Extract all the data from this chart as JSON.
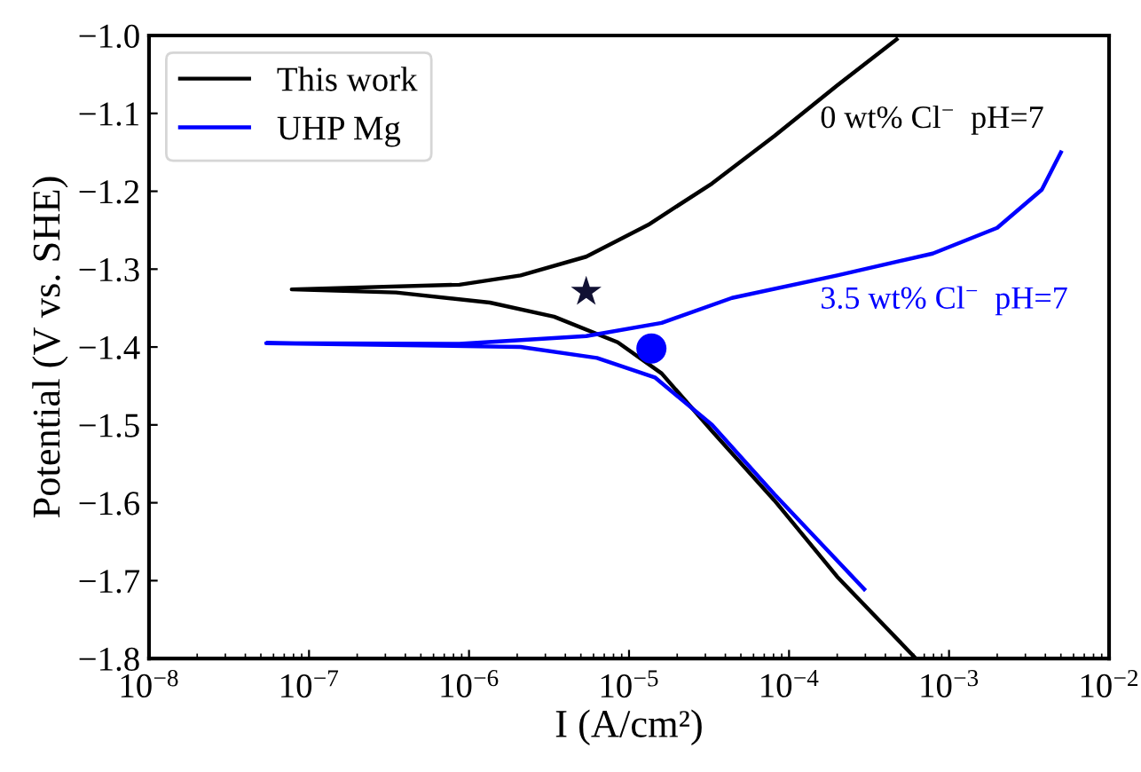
{
  "chart_data": {
    "type": "line",
    "xlabel": "I (A/cm²)",
    "ylabel": "Potential (V vs. SHE)",
    "log": "x",
    "xlim": [
      1e-08,
      0.01
    ],
    "ylim": [
      -1.8,
      -1.0
    ],
    "xticks": [
      {
        "value": 1e-08,
        "label": "10$^{−8}$"
      },
      {
        "value": 1e-07,
        "label": "10$^{−7}$"
      },
      {
        "value": 1e-06,
        "label": "10$^{−6}$"
      },
      {
        "value": 1e-05,
        "label": "10$^{−5}$"
      },
      {
        "value": 0.0001,
        "label": "10$^{−4}$"
      },
      {
        "value": 0.001,
        "label": "10$^{−3}$"
      },
      {
        "value": 0.01,
        "label": "10$^{−2}$"
      }
    ],
    "yticks": [
      {
        "value": -1.8,
        "label": "−1.8"
      },
      {
        "value": -1.7,
        "label": "−1.7"
      },
      {
        "value": -1.6,
        "label": "−1.6"
      },
      {
        "value": -1.5,
        "label": "−1.5"
      },
      {
        "value": -1.4,
        "label": "−1.4"
      },
      {
        "value": -1.3,
        "label": "−1.3"
      },
      {
        "value": -1.2,
        "label": "−1.2"
      },
      {
        "value": -1.1,
        "label": "−1.1"
      },
      {
        "value": -1.0,
        "label": "−1.0"
      }
    ],
    "grid": false,
    "legend": "top left",
    "line_style": "solid",
    "marker": "none",
    "series": [
      {
        "name": "This work",
        "color": "#000000",
        "x": [
          0.00062,
          0.0002,
          8.1e-05,
          3.3e-05,
          1.6e-05,
          8.5e-06,
          3.4e-06,
          1.35e-06,
          3.5e-07,
          7.8e-08,
          8.7e-07,
          2.1e-06,
          5.4e-06,
          1.32e-05,
          3.3e-05,
          8.1e-05,
          0.0002,
          0.00047
        ],
        "values": [
          -1.8,
          -1.695,
          -1.597,
          -1.508,
          -1.434,
          -1.394,
          -1.361,
          -1.343,
          -1.33,
          -1.326,
          -1.32,
          -1.308,
          -1.284,
          -1.243,
          -1.19,
          -1.129,
          -1.064,
          -1.005
        ]
      },
      {
        "name": "UHP Mg",
        "color": "#0000ff",
        "x": [
          0.000295,
          8.1e-05,
          3.3e-05,
          1.45e-05,
          6.3e-06,
          2.1e-06,
          5.4e-08,
          8.7e-07,
          5.4e-06,
          1.6e-05,
          4.4e-05,
          0.0002,
          0.00079,
          0.002,
          0.0038,
          0.005
        ],
        "values": [
          -1.711,
          -1.589,
          -1.5,
          -1.439,
          -1.414,
          -1.4,
          -1.395,
          -1.396,
          -1.386,
          -1.369,
          -1.337,
          -1.308,
          -1.28,
          -1.247,
          -1.198,
          -1.15
        ]
      },
      {
        "type": "scatter",
        "marker": "star",
        "color": "#111133",
        "x": [
          5.4e-06
        ],
        "values": [
          -1.329
        ]
      },
      {
        "type": "scatter",
        "marker": "circle",
        "color": "#0000ff",
        "x": [
          1.38e-05
        ],
        "values": [
          -1.402
        ]
      }
    ],
    "annotations": [
      "0 wt% Cl$^{−}$  pH=7",
      "3.5 wt% Cl$^{−}$  pH=7"
    ]
  }
}
